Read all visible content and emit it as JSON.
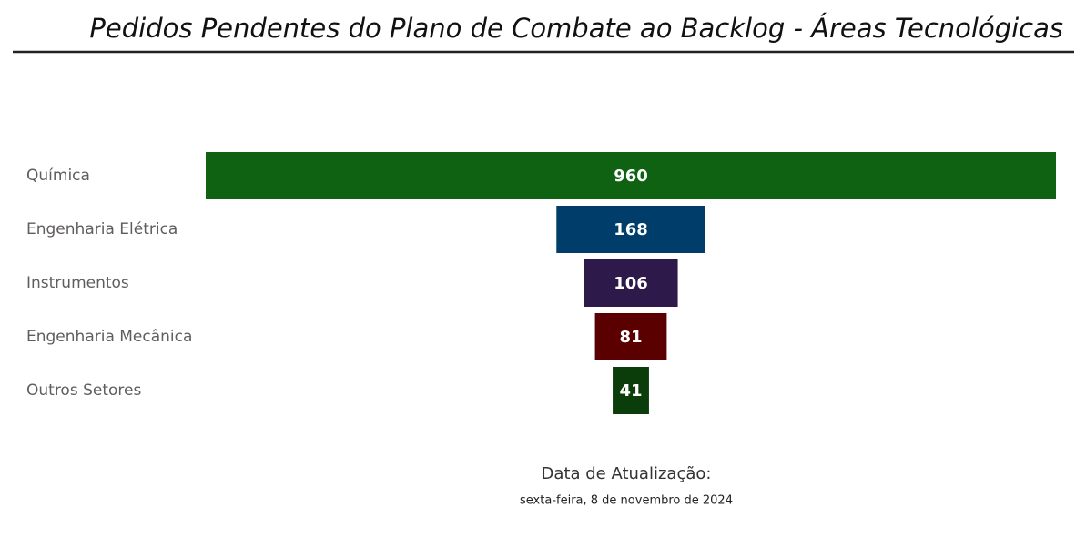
{
  "chart_data": {
    "type": "funnel",
    "title": "Pedidos Pendentes do Plano de Combate ao Backlog - Áreas Tecnológicas",
    "categories": [
      "Química",
      "Engenharia Elétrica",
      "Instrumentos",
      "Engenharia Mecânica",
      "Outros Setores"
    ],
    "values": [
      960,
      168,
      106,
      81,
      41
    ],
    "colors": [
      "#0e6212",
      "#003d6b",
      "#2d1a4b",
      "#5a0000",
      "#0b3d0b"
    ],
    "footer_label": "Data de Atualização:",
    "footer_date": "sexta-feira, 8 de novembro de 2024"
  }
}
